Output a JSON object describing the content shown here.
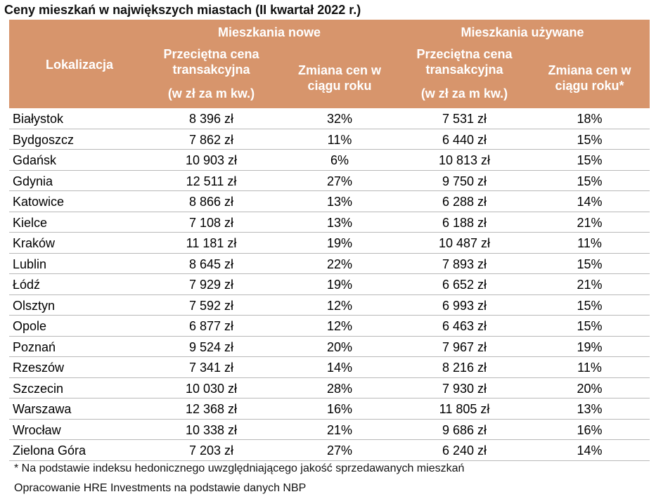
{
  "title": "Ceny mieszkań w największych miastach (II kwartał 2022 r.)",
  "colors": {
    "header_bg": "#d7956c",
    "header_text": "#ffffff",
    "row_divider": "#b8b8b8"
  },
  "header": {
    "group_new": "Mieszkania nowe",
    "group_used": "Mieszkania używane",
    "location": "Lokalizacja",
    "price_new": "Przeciętna cena\ntransakcyjna",
    "unit_new": "(w zł za m kw.)",
    "change_new": "Zmiana cen w\nciągu roku",
    "price_used": "Przeciętna cena\ntransakcyjna",
    "unit_used": "(w zł za m kw.)",
    "change_used": "Zmiana cen w\nciągu roku*"
  },
  "rows": [
    {
      "city": "Białystok",
      "price_new": "8 396 zł",
      "change_new": "32%",
      "price_used": "7 531 zł",
      "change_used": "18%"
    },
    {
      "city": "Bydgoszcz",
      "price_new": "7 862 zł",
      "change_new": "11%",
      "price_used": "6 440 zł",
      "change_used": "15%"
    },
    {
      "city": "Gdańsk",
      "price_new": "10 903 zł",
      "change_new": "6%",
      "price_used": "10 813 zł",
      "change_used": "15%"
    },
    {
      "city": "Gdynia",
      "price_new": "12 511 zł",
      "change_new": "27%",
      "price_used": "9 750 zł",
      "change_used": "15%"
    },
    {
      "city": "Katowice",
      "price_new": "8 866 zł",
      "change_new": "13%",
      "price_used": "6 288 zł",
      "change_used": "14%"
    },
    {
      "city": "Kielce",
      "price_new": "7 108 zł",
      "change_new": "13%",
      "price_used": "6 188 zł",
      "change_used": "21%"
    },
    {
      "city": "Kraków",
      "price_new": "11 181 zł",
      "change_new": "19%",
      "price_used": "10 487 zł",
      "change_used": "11%"
    },
    {
      "city": "Lublin",
      "price_new": "8 645 zł",
      "change_new": "22%",
      "price_used": "7 893 zł",
      "change_used": "15%"
    },
    {
      "city": "Łódź",
      "price_new": "7 929 zł",
      "change_new": "19%",
      "price_used": "6 652 zł",
      "change_used": "21%"
    },
    {
      "city": "Olsztyn",
      "price_new": "7 592 zł",
      "change_new": "12%",
      "price_used": "6 993 zł",
      "change_used": "15%"
    },
    {
      "city": "Opole",
      "price_new": "6 877 zł",
      "change_new": "12%",
      "price_used": "6 463 zł",
      "change_used": "15%"
    },
    {
      "city": "Poznań",
      "price_new": "9 524 zł",
      "change_new": "20%",
      "price_used": "7 967 zł",
      "change_used": "19%"
    },
    {
      "city": "Rzeszów",
      "price_new": "7 341 zł",
      "change_new": "14%",
      "price_used": "8 216 zł",
      "change_used": "11%"
    },
    {
      "city": "Szczecin",
      "price_new": "10 030 zł",
      "change_new": "28%",
      "price_used": "7 930 zł",
      "change_used": "20%"
    },
    {
      "city": "Warszawa",
      "price_new": "12 368 zł",
      "change_new": "16%",
      "price_used": "11 805 zł",
      "change_used": "13%"
    },
    {
      "city": "Wrocław",
      "price_new": "10 338 zł",
      "change_new": "21%",
      "price_used": "9 686 zł",
      "change_used": "16%"
    },
    {
      "city": "Zielona Góra",
      "price_new": "7 203 zł",
      "change_new": "27%",
      "price_used": "6 240 zł",
      "change_used": "14%"
    }
  ],
  "footnote": "* Na podstawie indeksu hedonicznego uwzględniającego jakość sprzedawanych mieszkań",
  "source": "Opracowanie HRE Investments na podstawie danych NBP"
}
